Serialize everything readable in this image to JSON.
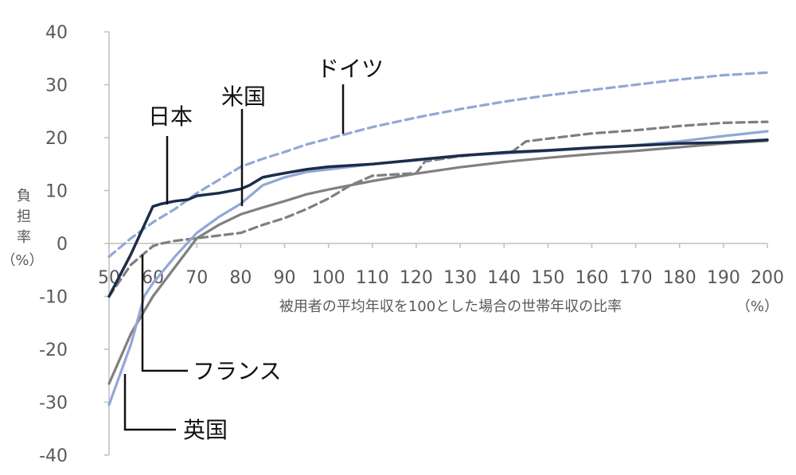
{
  "chart_data": {
    "type": "line",
    "title": "",
    "xlabel": "被用者の平均年収を100とした場合の世帯年収の比率",
    "x_unit": "（%）",
    "ylabel": "負担率（%）",
    "ylabel_lines": [
      "負",
      "担",
      "率",
      "（%）"
    ],
    "xlim": [
      50,
      200
    ],
    "ylim": [
      -40,
      40
    ],
    "x_ticks": [
      50,
      60,
      70,
      80,
      90,
      100,
      110,
      120,
      130,
      140,
      150,
      160,
      170,
      180,
      190,
      200
    ],
    "y_ticks": [
      40,
      30,
      20,
      10,
      0,
      -10,
      -20,
      -30,
      -40
    ],
    "grid": false,
    "legend": "none",
    "series": [
      {
        "name": "日本",
        "color": "#1b2d4a",
        "dash": "solid",
        "x": [
          50,
          55,
          60,
          62,
          65,
          68,
          70,
          75,
          80,
          82,
          85,
          88,
          90,
          95,
          100,
          110,
          120,
          130,
          140,
          150,
          160,
          170,
          180,
          190,
          200
        ],
        "y": [
          -10,
          -2,
          7,
          7.5,
          8,
          8.3,
          9,
          9.5,
          10.3,
          11,
          12.5,
          13,
          13.3,
          14,
          14.5,
          15,
          15.8,
          16.6,
          17.2,
          17.6,
          18.1,
          18.5,
          18.9,
          19.1,
          19.6
        ]
      },
      {
        "name": "米国",
        "color": "#91a8d6",
        "dash": "solid",
        "x": [
          50,
          55,
          58,
          60,
          65,
          70,
          75,
          80,
          85,
          90,
          95,
          100,
          110,
          120,
          130,
          140,
          150,
          160,
          170,
          180,
          190,
          200
        ],
        "y": [
          -30.5,
          -19,
          -10,
          -7.5,
          -2.5,
          2,
          5,
          7.5,
          11,
          12.5,
          13.5,
          14,
          15,
          15.7,
          16.6,
          17,
          17.5,
          18,
          18.6,
          19.3,
          20.3,
          21.2
        ]
      },
      {
        "name": "ドイツ",
        "color": "#91a8d6",
        "dash": "dashed",
        "x": [
          50,
          55,
          60,
          65,
          70,
          75,
          80,
          85,
          90,
          95,
          100,
          110,
          120,
          130,
          140,
          150,
          160,
          170,
          180,
          190,
          200
        ],
        "y": [
          -2.5,
          1,
          4,
          6.5,
          9.5,
          12,
          14.5,
          16,
          17.3,
          18.7,
          19.8,
          22,
          23.8,
          25.4,
          26.8,
          28,
          29,
          30,
          31,
          31.8,
          32.3
        ]
      },
      {
        "name": "フランス",
        "color": "#7f7f7f",
        "dash": "dashed",
        "x": [
          50,
          55,
          60,
          62,
          65,
          70,
          75,
          80,
          85,
          90,
          95,
          100,
          105,
          110,
          120,
          122,
          130,
          140,
          142,
          145,
          150,
          160,
          170,
          180,
          190,
          200
        ],
        "y": [
          -10,
          -4,
          -0.5,
          0,
          0.5,
          1,
          1.5,
          2,
          3.5,
          4.8,
          6.5,
          8.5,
          11,
          12.8,
          13.3,
          15.5,
          16.5,
          17.2,
          17.4,
          19.3,
          19.8,
          20.8,
          21.4,
          22.2,
          22.8,
          23
        ]
      },
      {
        "name": "英国",
        "color": "#808080",
        "dash": "solid",
        "x": [
          50,
          55,
          60,
          65,
          70,
          75,
          80,
          85,
          90,
          95,
          100,
          110,
          120,
          130,
          140,
          150,
          160,
          170,
          180,
          190,
          200
        ],
        "y": [
          -26.5,
          -17,
          -10,
          -4.5,
          1,
          3.5,
          5.5,
          6.8,
          8,
          9.3,
          10.2,
          11.8,
          13.2,
          14.4,
          15.4,
          16.2,
          16.9,
          17.5,
          18.2,
          18.9,
          19.4
        ]
      }
    ]
  }
}
